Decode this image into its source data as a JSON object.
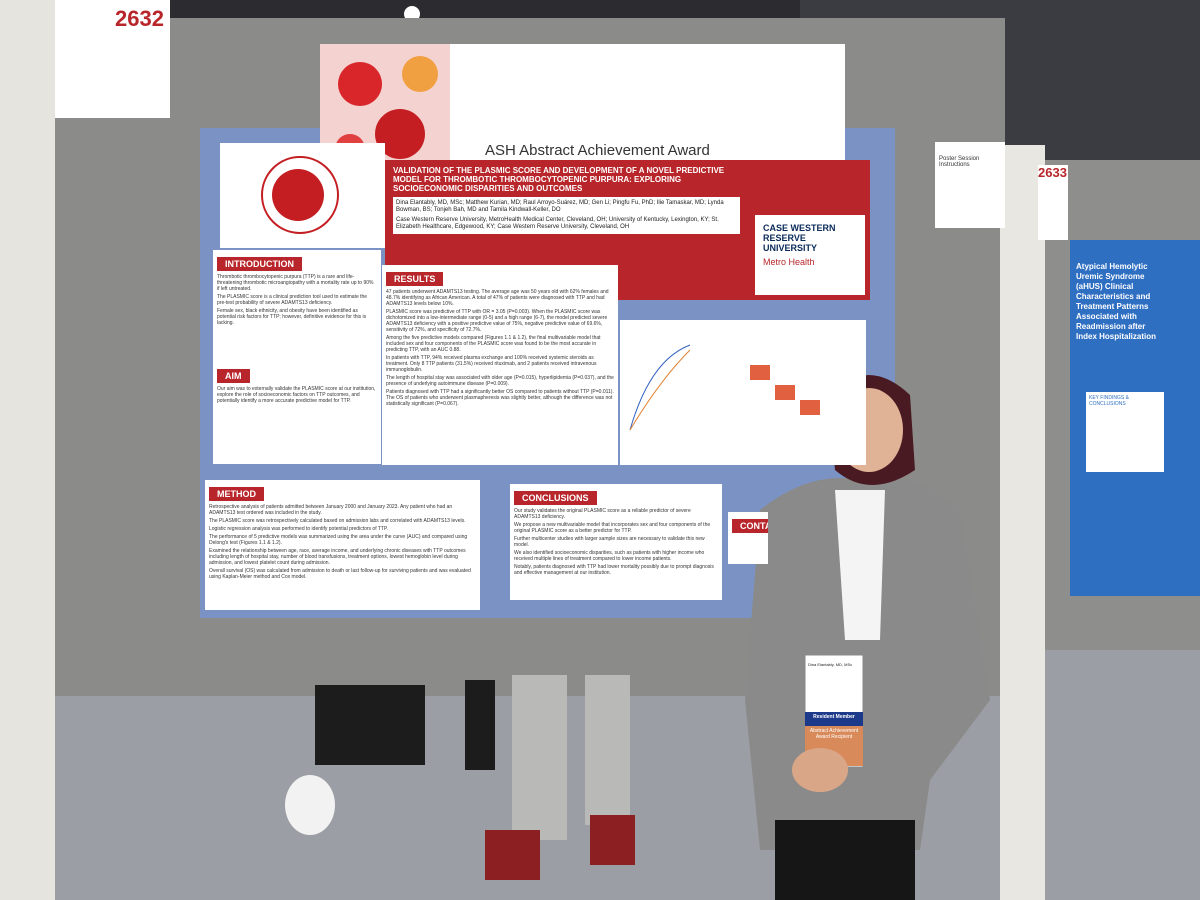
{
  "board": {
    "number": "2632",
    "next_number": "2633"
  },
  "award_banner": "ASH Abstract Achievement Award",
  "instructions_sign": "Poster Session Instructions",
  "poster": {
    "title": "VALIDATION OF THE PLASMIC SCORE AND DEVELOPMENT OF A NOVEL PREDICTIVE MODEL FOR THROMBOTIC THROMBOCYTOPENIC PURPURA: EXPLORING SOCIOECONOMIC DISPARITIES AND OUTCOMES",
    "authors": "Dina Elantably, MD, MSc; Matthew Kurian, MD; Raul Arroyo-Suárez, MD; Gen Li; Pingfu Fu, PhD; Ilie Tamaskar, MD; Lynda Bowman, BS; Tonjeh Bah, MD and Tamila Kindwall-Keller, DO",
    "affiliations": "Case Western Reserve University, MetroHealth Medical Center, Cleveland, OH; University of Kentucky, Lexington, KY; St. Elizabeth Healthcare, Edgewood, KY; Case Western Reserve University, Cleveland, OH",
    "logos": [
      "CASE WESTERN RESERVE UNIVERSITY",
      "Metro Health"
    ],
    "sections": [
      {
        "heading": "INTRODUCTION",
        "text": [
          "Thrombotic thrombocytopenic purpura (TTP) is a rare and life-threatening thrombotic microangiopathy with a mortality rate up to 90% if left untreated.",
          "The PLASMIC score is a clinical prediction tool used to estimate the pre-test probability of severe ADAMTS13 deficiency.",
          "Female sex, black ethnicity, and obesity have been identified as potential risk factors for TTP; however, definitive evidence for this is lacking."
        ]
      },
      {
        "heading": "AIM",
        "text": [
          "Our aim was to externally validate the PLASMIC score at our institution, explore the role of socioeconomic factors on TTP outcomes, and potentially identify a more accurate predictive model for TTP."
        ]
      },
      {
        "heading": "RESULTS",
        "text": [
          "47 patients underwent ADAMTS13 testing. The average age was 50 years old with 62% females and 48.7% identifying as African American. A total of 47% of patients were diagnosed with TTP and had ADAMTS13 levels below 10%.",
          "PLASMIC score was predictive of TTP with OR = 3.05 (P=0.003). When the PLASMIC score was dichotomized into a low-intermediate range (0-5) and a high range (6-7), the model predicted severe ADAMTS13 deficiency with a positive predictive value of 75%, negative predictive value of 69.6%, sensitivity of 72%, and specificity of 72.7%.",
          "Among the five predictive models compared (Figures 1.1 & 1.2), the final multivariable model that included sex and four components of the PLASMIC score was found to be the most accurate in predicting TTP, with an AUC 0.88.",
          "In patients with TTP, 94% received plasma exchange and 100% received systemic steroids as treatment. Only 8 TTP patients (31.5%) received rituximab, and 2 patients received intravenous immunoglobulin.",
          "The length of hospital stay was associated with older age (P=0.015), hyperlipidemia (P=0.037), and the presence of underlying autoimmune disease (P=0.009).",
          "Patients diagnosed with TTP had a significantly better OS compared to patients without TTP (P=0.011). The OS of patients who underwent plasmapheresis was slightly better, although the difference was not statistically significant (P=0.067)."
        ]
      },
      {
        "heading": "METHOD",
        "text": [
          "Retrospective analysis of patients admitted between January 2000 and January 2023. Any patient who had an ADAMTS13 test ordered was included in the study.",
          "The PLASMIC score was retrospectively calculated based on admission labs and correlated with ADAMTS13 levels.",
          "Logistic regression analysis was performed to identify potential predictors of TTP.",
          "The performance of 5 predictive models was summarized using the area under the curve (AUC) and compared using Delong's test (Figures 1.1 & 1.2).",
          "Examined the relationship between age, race, average income, and underlying chronic diseases with TTP outcomes including length of hospital stay, number of blood transfusions, treatment options, lowest hemoglobin level during admission, and lowest platelet count during admission.",
          "Overall survival (OS) was calculated from admission to death or last follow-up for surviving patients and was evaluated using Kaplan-Meier method and Cox model."
        ]
      },
      {
        "heading": "CONCLUSIONS",
        "text": [
          "Our study validates the original PLASMIC score as a reliable predictor of severe ADAMTS13 deficiency.",
          "We propose a new multivariable model that incorporates sex and four components of the original PLASMIC score as a better predictor for TTP.",
          "Further multicenter studies with larger sample sizes are necessary to validate this new model.",
          "We also identified socioeconomic disparities, such as patients with higher income who received multiple lines of treatment compared to lower income patients.",
          "Notably, patients diagnosed with TTP had lower mortality possibly due to prompt diagnosis and effective management at our institution."
        ]
      },
      {
        "heading": "CONTACT",
        "text": []
      }
    ]
  },
  "side_poster": {
    "title": "Atypical Hemolytic Uremic Syndrome (aHUS) Clinical Characteristics and Treatment Patterns Associated with Readmission after Index Hospitalization",
    "section": "KEY FINDINGS & CONCLUSIONS"
  },
  "badge": {
    "name": "Dina Elantably, MD, MSc",
    "role": "Resident Member",
    "ribbon": "Abstract Achievement Award Recipient"
  }
}
